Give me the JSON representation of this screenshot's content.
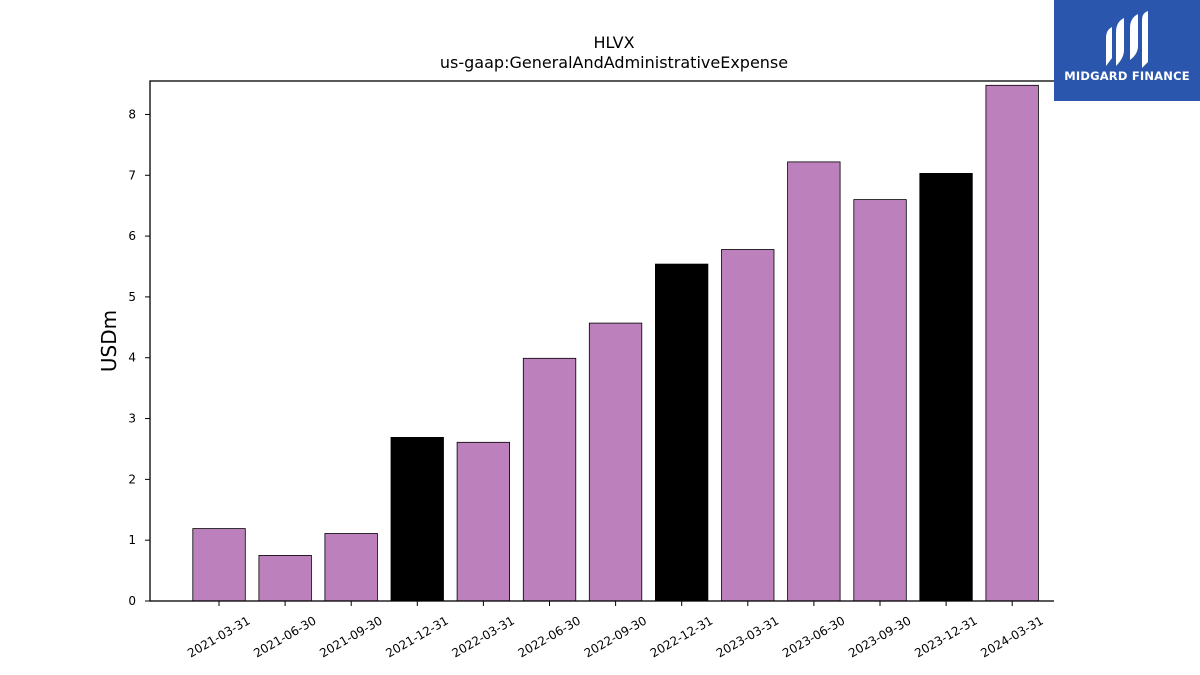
{
  "logo": {
    "text": "MIDGARD FINANCE",
    "background": "#2a57ad"
  },
  "chart_data": {
    "type": "bar",
    "title": "HLVX",
    "subtitle": "us-gaap:GeneralAndAdministrativeExpense",
    "xlabel": "",
    "ylabel": "USDm",
    "categories": [
      "2021-03-31",
      "2021-06-30",
      "2021-09-30",
      "2021-12-31",
      "2022-03-31",
      "2022-06-30",
      "2022-09-30",
      "2022-12-31",
      "2023-03-31",
      "2023-06-30",
      "2023-09-30",
      "2023-12-31",
      "2024-03-31"
    ],
    "values": [
      1.19,
      0.75,
      1.11,
      2.69,
      2.61,
      3.99,
      4.57,
      5.54,
      5.78,
      7.22,
      6.6,
      7.03,
      8.48
    ],
    "colors": [
      "#bc80bd",
      "#bc80bd",
      "#bc80bd",
      "#000000",
      "#bc80bd",
      "#bc80bd",
      "#bc80bd",
      "#000000",
      "#bc80bd",
      "#bc80bd",
      "#bc80bd",
      "#000000",
      "#bc80bd"
    ],
    "ylim": [
      0,
      8.55
    ],
    "yticks": [
      0,
      1,
      2,
      3,
      4,
      5,
      6,
      7,
      8
    ],
    "grid": false,
    "legend": false
  }
}
